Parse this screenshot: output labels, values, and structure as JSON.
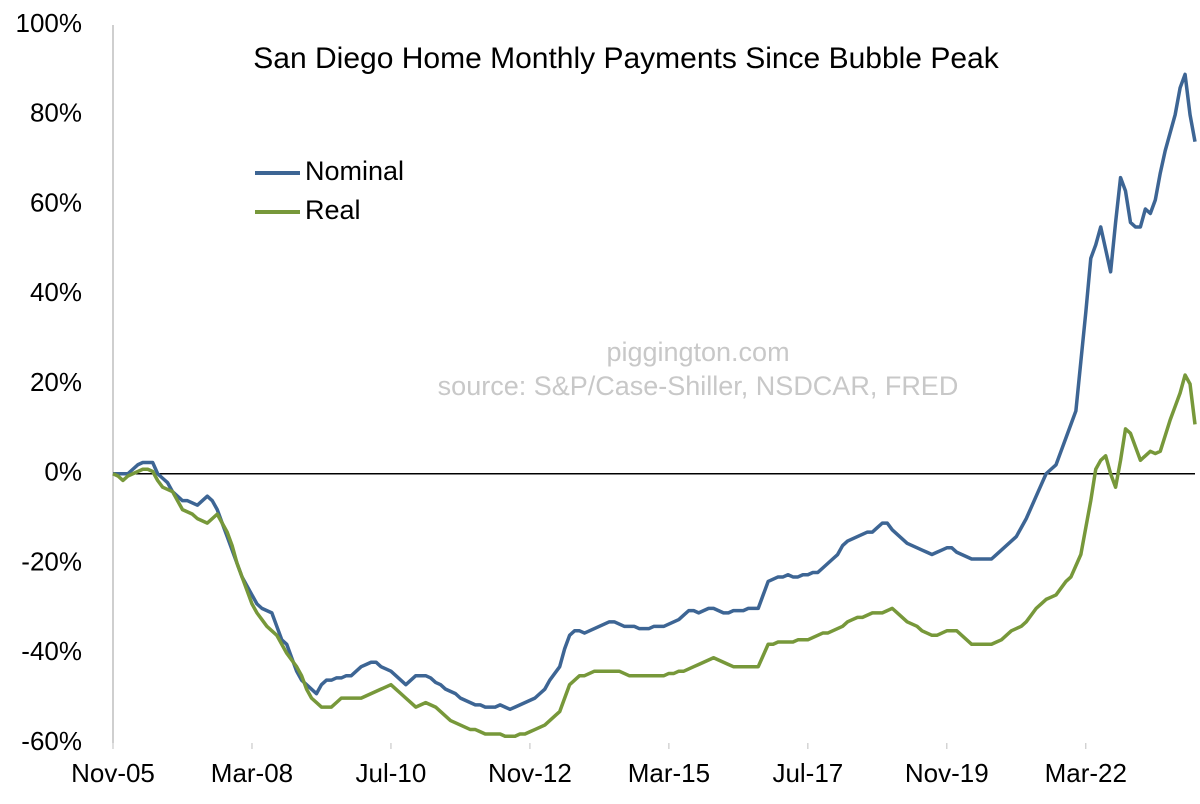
{
  "chart_data": {
    "type": "line",
    "title": "San Diego Home Monthly Payments Since Bubble Peak",
    "annotations": [
      "piggington.com",
      "source: S&P/Case-Shiller, NSDCAR, FRED"
    ],
    "legend": "upper left",
    "grid": false,
    "ylim": [
      -60,
      100
    ],
    "yticks": [
      {
        "value": -60,
        "label": "-60%"
      },
      {
        "value": -40,
        "label": "-40%"
      },
      {
        "value": -20,
        "label": "-20%"
      },
      {
        "value": 0,
        "label": "0%"
      },
      {
        "value": 20,
        "label": "20%"
      },
      {
        "value": 40,
        "label": "40%"
      },
      {
        "value": 60,
        "label": "60%"
      },
      {
        "value": 80,
        "label": "80%"
      },
      {
        "value": 100,
        "label": "100%"
      }
    ],
    "categories": [
      "Nov-05",
      null,
      null,
      null,
      null,
      null,
      null,
      null,
      null,
      null,
      null,
      null,
      null,
      null,
      null,
      null,
      null,
      null,
      null,
      null,
      null,
      null,
      null,
      null,
      null,
      null,
      null,
      null,
      "Mar-08",
      null,
      null,
      null,
      null,
      null,
      null,
      null,
      null,
      null,
      null,
      null,
      null,
      null,
      null,
      null,
      null,
      null,
      null,
      null,
      null,
      null,
      null,
      null,
      null,
      null,
      null,
      null,
      "Jul-10",
      null,
      null,
      null,
      null,
      null,
      null,
      null,
      null,
      null,
      null,
      null,
      null,
      null,
      null,
      null,
      null,
      null,
      null,
      null,
      null,
      null,
      null,
      null,
      null,
      null,
      null,
      null,
      "Nov-12",
      null,
      null,
      null,
      null,
      null,
      null,
      null,
      null,
      null,
      null,
      null,
      null,
      null,
      null,
      null,
      null,
      null,
      null,
      null,
      null,
      null,
      null,
      null,
      null,
      null,
      null,
      null,
      "Mar-15",
      null,
      null,
      null,
      null,
      null,
      null,
      null,
      null,
      null,
      null,
      null,
      null,
      null,
      null,
      null,
      null,
      null,
      null,
      null,
      null,
      null,
      null,
      null,
      null,
      null,
      null,
      null,
      "Jul-17",
      null,
      null,
      null,
      null,
      null,
      null,
      null,
      null,
      null,
      null,
      null,
      null,
      null,
      null,
      null,
      null,
      null,
      null,
      null,
      null,
      null,
      null,
      null,
      null,
      null,
      null,
      null,
      "Nov-19",
      null,
      null,
      null,
      null,
      null,
      null,
      null,
      null,
      null,
      null,
      null,
      null,
      null,
      null,
      null,
      null,
      null,
      null,
      null,
      null,
      null,
      null,
      null,
      null,
      null,
      null,
      null,
      "Mar-22",
      null,
      null,
      null,
      null,
      null,
      null,
      null,
      null,
      null,
      null,
      null,
      null,
      null,
      null,
      null,
      null,
      null,
      null,
      null,
      null,
      null,
      null
    ],
    "series": [
      {
        "name": "Nominal",
        "color": "#3d6594",
        "values": [
          0,
          0,
          0,
          0,
          1,
          2,
          2.5,
          2.5,
          2.5,
          0,
          -1,
          -2,
          -4,
          -5,
          -6,
          -6,
          -6.5,
          -7,
          -6,
          -5,
          -6,
          -8,
          -11,
          -14,
          -17,
          -20,
          -23,
          -25,
          -27,
          -29,
          -30,
          -30.5,
          -31,
          -34,
          -37,
          -38,
          -41,
          -44,
          -46,
          -47,
          -48,
          -49,
          -47,
          -46,
          -46,
          -45.5,
          -45.5,
          -45,
          -45,
          -44,
          -43,
          -42.5,
          -42,
          -42,
          -43,
          -43.5,
          -44,
          -45,
          -46,
          -47,
          -46,
          -45,
          -45,
          -45,
          -45.5,
          -46.5,
          -47,
          -48,
          -48.5,
          -49,
          -50,
          -50.5,
          -51,
          -51.5,
          -51.5,
          -52,
          -52,
          -52,
          -51.5,
          -52,
          -52.5,
          -52,
          -51.5,
          -51,
          -50.5,
          -50,
          -49,
          -48,
          -46,
          -44.5,
          -43,
          -39,
          -36,
          -35,
          -35,
          -35.5,
          -35,
          -34.5,
          -34,
          -33.5,
          -33,
          -33,
          -33.5,
          -34,
          -34,
          -34,
          -34.5,
          -34.5,
          -34.5,
          -34,
          -34,
          -34,
          -33.5,
          -33,
          -32.5,
          -31.5,
          -30.5,
          -30.5,
          -31,
          -30.5,
          -30,
          -30,
          -30.5,
          -31,
          -31,
          -30.5,
          -30.5,
          -30.5,
          -30,
          -30,
          -30,
          -27,
          -24,
          -23.5,
          -23,
          -23,
          -22.5,
          -23,
          -23,
          -22.5,
          -22.5,
          -22,
          -22,
          -21,
          -20,
          -19,
          -18,
          -16,
          -15,
          -14.5,
          -14,
          -13.5,
          -13,
          -13,
          -12,
          -11,
          -11,
          -12.5,
          -13.5,
          -14.5,
          -15.5,
          -16,
          -16.5,
          -17,
          -17.5,
          -18,
          -17.5,
          -17,
          -16.5,
          -16.5,
          -17.5,
          -18,
          -18.5,
          -19,
          -19,
          -19,
          -19,
          -19,
          -18,
          -17,
          -16,
          -15,
          -14,
          -12,
          -10,
          -7.5,
          -5,
          -2.5,
          0,
          1,
          2,
          5,
          8,
          11,
          14,
          25,
          36,
          48,
          51,
          55,
          50,
          45,
          56,
          66,
          63,
          56,
          55,
          55,
          59,
          58,
          61,
          67,
          72,
          76,
          80,
          86,
          89,
          80,
          74
        ]
      },
      {
        "name": "Real",
        "color": "#77983a",
        "values": [
          0,
          -0.5,
          -1.5,
          -0.5,
          0,
          0.5,
          1,
          1,
          0.5,
          -1.5,
          -3,
          -3.5,
          -4,
          -6,
          -8,
          -8.5,
          -9,
          -10,
          -10.5,
          -11,
          -10,
          -9,
          -11,
          -13,
          -16,
          -20,
          -23,
          -26,
          -29,
          -31,
          -32.5,
          -34,
          -35,
          -36,
          -38,
          -40,
          -41.5,
          -43,
          -45,
          -48,
          -50,
          -51,
          -52,
          -52,
          -52,
          -51,
          -50,
          -50,
          -50,
          -50,
          -50,
          -49.5,
          -49,
          -48.5,
          -48,
          -47.5,
          -47,
          -48,
          -49,
          -50,
          -51,
          -52,
          -51.5,
          -51,
          -51.5,
          -52,
          -53,
          -54,
          -55,
          -55.5,
          -56,
          -56.5,
          -57,
          -57,
          -57.5,
          -58,
          -58,
          -58,
          -58,
          -58.5,
          -58.5,
          -58.5,
          -58,
          -58,
          -57.5,
          -57,
          -56.5,
          -56,
          -55,
          -54,
          -53,
          -50,
          -47,
          -46,
          -45,
          -45,
          -44.5,
          -44,
          -44,
          -44,
          -44,
          -44,
          -44,
          -44.5,
          -45,
          -45,
          -45,
          -45,
          -45,
          -45,
          -45,
          -45,
          -44.5,
          -44.5,
          -44,
          -44,
          -43.5,
          -43,
          -42.5,
          -42,
          -41.5,
          -41,
          -41.5,
          -42,
          -42.5,
          -43,
          -43,
          -43,
          -43,
          -43,
          -43,
          -40.5,
          -38,
          -38,
          -37.5,
          -37.5,
          -37.5,
          -37.5,
          -37,
          -37,
          -37,
          -36.5,
          -36,
          -35.5,
          -35.5,
          -35,
          -34.5,
          -34,
          -33,
          -32.5,
          -32,
          -32,
          -31.5,
          -31,
          -31,
          -31,
          -30.5,
          -30,
          -31,
          -32,
          -33,
          -33.5,
          -34,
          -35,
          -35.5,
          -36,
          -36,
          -35.5,
          -35,
          -35,
          -35,
          -36,
          -37,
          -38,
          -38,
          -38,
          -38,
          -38,
          -37.5,
          -37,
          -36,
          -35,
          -34.5,
          -34,
          -33,
          -31.5,
          -30,
          -29,
          -28,
          -27.5,
          -27,
          -25.5,
          -24,
          -23,
          -20.5,
          -18,
          -12,
          -6,
          1,
          3,
          4,
          0,
          -3,
          3,
          10,
          9,
          6,
          3,
          4,
          5,
          4.5,
          5,
          8.5,
          12,
          15,
          18,
          22,
          20,
          11
        ]
      }
    ]
  }
}
